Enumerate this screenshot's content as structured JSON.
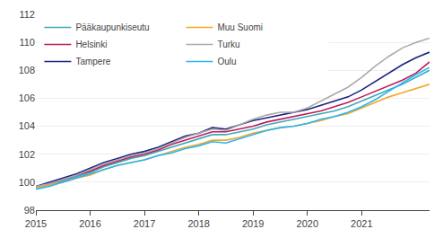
{
  "chart_data": {
    "type": "line",
    "categories": [
      "2015",
      null,
      null,
      null,
      "2016",
      null,
      null,
      null,
      "2017",
      null,
      null,
      null,
      "2018",
      null,
      null,
      null,
      "2019",
      null,
      null,
      null,
      "2020",
      null,
      null,
      null,
      "2021",
      null,
      null,
      null,
      null,
      null
    ],
    "series": [
      {
        "name": "Pääkaupunkiseutu",
        "color": "#3AACB8",
        "values": [
          99.6,
          99.8,
          100.1,
          100.4,
          100.7,
          101.1,
          101.4,
          101.7,
          101.9,
          102.2,
          102.5,
          102.8,
          103.1,
          103.4,
          103.4,
          103.6,
          103.8,
          104.1,
          104.3,
          104.5,
          104.7,
          104.9,
          105.1,
          105.4,
          105.8,
          106.2,
          106.6,
          107.0,
          107.5,
          108.0
        ]
      },
      {
        "name": "Helsinki",
        "color": "#C2185B",
        "values": [
          99.7,
          99.9,
          100.2,
          100.5,
          100.8,
          101.2,
          101.5,
          101.8,
          102.0,
          102.3,
          102.7,
          103.0,
          103.3,
          103.6,
          103.6,
          103.8,
          104.0,
          104.3,
          104.5,
          104.7,
          104.9,
          105.1,
          105.4,
          105.7,
          106.1,
          106.5,
          106.9,
          107.3,
          107.8,
          108.6
        ]
      },
      {
        "name": "Tampere",
        "color": "#1A237E",
        "values": [
          99.7,
          100.0,
          100.3,
          100.6,
          101.0,
          101.4,
          101.7,
          102.0,
          102.2,
          102.5,
          102.9,
          103.3,
          103.5,
          103.9,
          103.8,
          104.1,
          104.4,
          104.6,
          104.8,
          105.0,
          105.2,
          105.5,
          105.8,
          106.1,
          106.6,
          107.2,
          107.8,
          108.4,
          108.9,
          109.3
        ]
      },
      {
        "name": "Muu Suomi",
        "color": "#F5A623",
        "values": [
          99.6,
          99.8,
          100.0,
          100.3,
          100.5,
          100.9,
          101.2,
          101.4,
          101.6,
          101.9,
          102.2,
          102.5,
          102.7,
          103.0,
          103.0,
          103.2,
          103.5,
          103.7,
          103.9,
          104.0,
          104.2,
          104.4,
          104.7,
          104.9,
          105.3,
          105.7,
          106.1,
          106.4,
          106.7,
          107.0
        ]
      },
      {
        "name": "Turku",
        "color": "#AAAAAA",
        "values": [
          99.7,
          99.9,
          100.2,
          100.5,
          100.9,
          101.3,
          101.6,
          101.9,
          102.1,
          102.4,
          102.8,
          103.2,
          103.5,
          103.8,
          103.7,
          104.1,
          104.5,
          104.8,
          105.0,
          105.0,
          105.3,
          105.8,
          106.3,
          106.8,
          107.5,
          108.3,
          109.0,
          109.6,
          110.0,
          110.3
        ]
      },
      {
        "name": "Oulu",
        "color": "#29B6F6",
        "values": [
          99.5,
          99.7,
          100.0,
          100.3,
          100.6,
          100.9,
          101.2,
          101.4,
          101.6,
          101.9,
          102.1,
          102.4,
          102.6,
          102.9,
          102.8,
          103.1,
          103.4,
          103.7,
          103.9,
          104.0,
          104.2,
          104.5,
          104.7,
          105.0,
          105.4,
          105.9,
          106.5,
          107.1,
          107.7,
          108.2
        ]
      }
    ],
    "ylim": [
      98,
      112
    ],
    "yticks": [
      98,
      100,
      102,
      104,
      106,
      108,
      110,
      112
    ],
    "grid": true,
    "legend": "upper left"
  }
}
